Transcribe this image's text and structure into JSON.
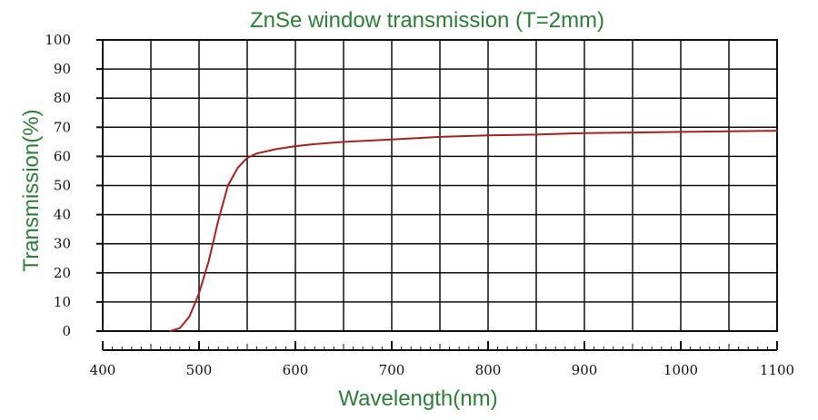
{
  "chart_data": {
    "type": "line",
    "title": "ZnSe window transmission (T=2mm)",
    "xlabel": "Wavelength(nm)",
    "ylabel": "Transmission(%)",
    "xlim": [
      400,
      1100
    ],
    "ylim": [
      0,
      100
    ],
    "grid": true,
    "x_ticks": [
      "400",
      "500",
      "600",
      "700",
      "800",
      "900",
      "1000",
      "1100"
    ],
    "y_ticks": [
      "0",
      "10",
      "20",
      "30",
      "40",
      "50",
      "60",
      "70",
      "80",
      "90",
      "100"
    ],
    "series": [
      {
        "color": "#a32121",
        "x": [
          470,
          480,
          490,
          500,
          510,
          520,
          530,
          540,
          550,
          560,
          580,
          600,
          620,
          650,
          700,
          750,
          800,
          850,
          900,
          950,
          1000,
          1050,
          1100
        ],
        "y": [
          0,
          1,
          5,
          13,
          24,
          38,
          50,
          56,
          59.5,
          61,
          62.5,
          63.5,
          64.2,
          65,
          65.8,
          66.7,
          67.2,
          67.5,
          68,
          68.2,
          68.4,
          68.6,
          68.8
        ]
      }
    ]
  }
}
